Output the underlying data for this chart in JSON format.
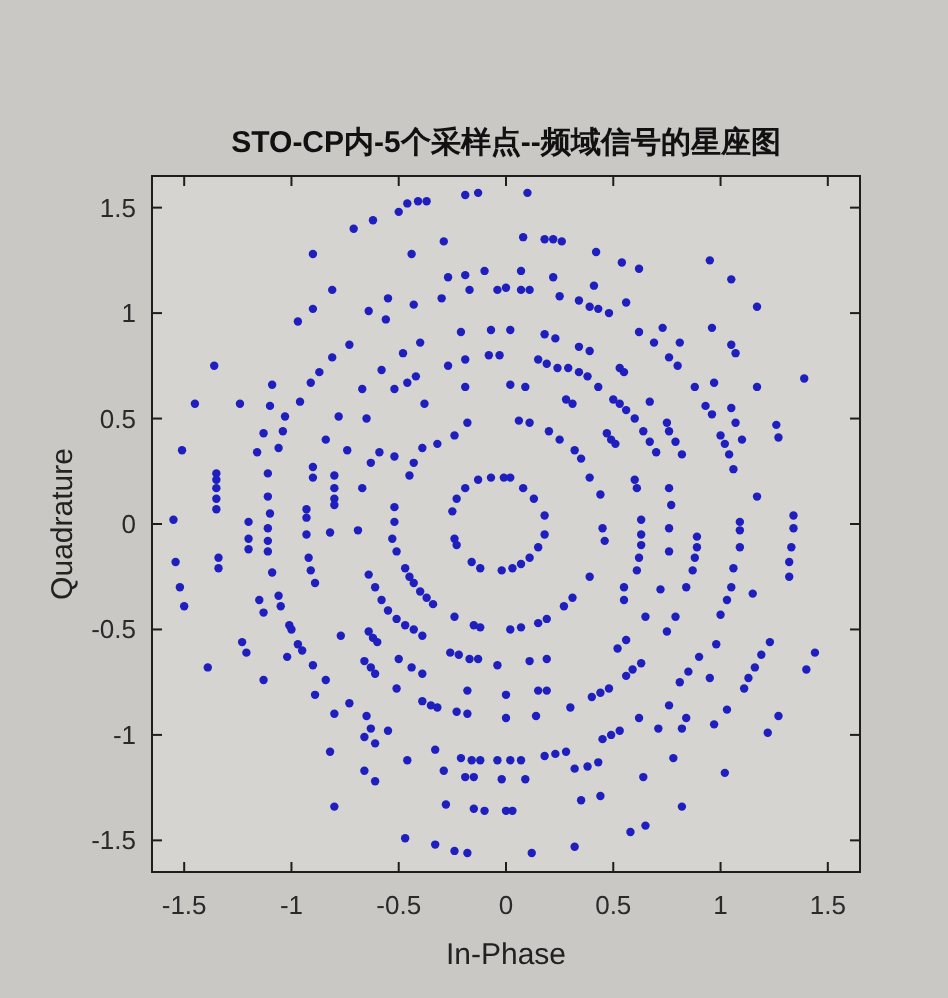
{
  "chart_data": {
    "type": "scatter",
    "title": "STO-CP内-5个采样点--频域信号的星座图",
    "xlabel": "In-Phase",
    "ylabel": "Quadrature",
    "xlim": [
      -1.65,
      1.65
    ],
    "ylim": [
      -1.65,
      1.65
    ],
    "xticks": [
      -1.5,
      -1,
      -0.5,
      0,
      0.5,
      1,
      1.5
    ],
    "yticks": [
      -1.5,
      -1,
      -0.5,
      0,
      0.5,
      1,
      1.5
    ],
    "marker": "circle",
    "grid": false,
    "series": [
      {
        "color": "#1f1fbf",
        "x": [
          -1.55,
          -1.51,
          -1.45,
          -1.36,
          -1.35,
          -1.35,
          -1.35,
          -1.35,
          -1.35,
          -1.24,
          -1.2,
          -1.16,
          -1.13,
          -1.1,
          -1.1,
          -1.11,
          -1.11,
          -1.09,
          -1.06,
          -1.04,
          -1.03,
          -0.96,
          -0.91,
          -0.97,
          -0.9,
          -0.9,
          -0.87,
          -0.81,
          -0.73,
          -0.84,
          -0.9,
          -0.9,
          -0.93,
          -0.93,
          -0.81,
          -0.78,
          -0.8,
          -0.8,
          -0.8,
          -0.8,
          -0.74,
          -0.71,
          -0.67,
          -0.67,
          -0.65,
          -0.62,
          -0.64,
          -0.55,
          -0.58,
          -0.63,
          -0.59,
          -0.56,
          -0.5,
          -0.46,
          -0.41,
          -0.37,
          -0.44,
          -0.48,
          -0.46,
          -0.42,
          -0.43,
          -0.52,
          -0.52,
          -0.52,
          -0.52,
          -0.45,
          -0.43,
          -0.38,
          -0.39,
          -0.4,
          -0.32,
          -0.29,
          -0.3,
          -0.27,
          -0.27,
          -0.24,
          -0.19,
          -0.13,
          -0.19,
          -0.1,
          -0.21,
          -0.19,
          -0.19,
          -0.18,
          -0.17,
          -0.04,
          -0.07,
          -0.08,
          -0.03,
          -0.25,
          -0.19,
          -0.13,
          -0.07,
          -0.01,
          -0.23,
          0.1,
          0.08,
          0.18,
          0.22,
          0.26,
          0.42,
          0.54,
          0.62,
          0.95,
          1.05,
          1.17,
          0.07,
          0.22,
          0.41,
          0.56,
          0.0,
          0.07,
          0.11,
          0.25,
          0.34,
          0.39,
          0.43,
          0.48,
          0.02,
          0.18,
          0.23,
          0.34,
          0.39,
          0.62,
          0.69,
          0.73,
          0.81,
          0.96,
          1.05,
          1.07,
          0.15,
          0.19,
          0.24,
          0.29,
          0.34,
          0.38,
          0.43,
          0.53,
          0.55,
          0.76,
          0.8,
          0.88,
          0.97,
          1.17,
          1.39,
          0.02,
          0.09,
          0.28,
          0.31,
          0.5,
          0.53,
          0.56,
          0.67,
          0.93,
          0.96,
          1.05,
          1.07,
          1.26,
          1.27,
          0.06,
          0.11,
          0.2,
          0.25,
          0.32,
          0.35,
          0.47,
          0.49,
          0.51,
          0.6,
          0.64,
          0.67,
          0.7,
          0.75,
          0.76,
          0.79,
          0.82,
          1.0,
          1.02,
          1.04,
          1.1,
          1.06,
          0.39,
          0.44,
          0.6,
          0.61,
          0.76,
          0.77,
          1.17,
          1.34,
          1.34,
          0.45,
          0.63,
          0.63,
          0.89,
          1.09,
          1.09,
          0.02,
          0.08,
          0.13,
          0.18,
          0.18,
          0.15,
          0.11,
          0.07,
          0.03,
          -0.02,
          0.46,
          0.39,
          0.31,
          0.27,
          0.19,
          0.15,
          0.07,
          0.02,
          0.63,
          0.62,
          0.61,
          0.55,
          0.55,
          0.65,
          0.79,
          0.72,
          0.76,
          0.76,
          0.89,
          0.88,
          0.87,
          0.84,
          0.75,
          0.56,
          0.52,
          0.63,
          0.59,
          0.56,
          1.09,
          1.06,
          1.05,
          1.03,
          1.15,
          1.0,
          1.33,
          1.32,
          1.32,
          1.23,
          1.19,
          1.16,
          1.13,
          1.11,
          1.44,
          1.4,
          0.9,
          0.85,
          0.81,
          0.95,
          0.98,
          0.76,
          1.03,
          1.27,
          1.22,
          0.97,
          0.84,
          0.82,
          0.71,
          0.62,
          0.53,
          0.49,
          0.45,
          0.48,
          0.44,
          0.4,
          0.3,
          0.19,
          0.15,
          0.14,
          0.0,
          0.0,
          0.19,
          0.11,
          -0.04,
          0.28,
          0.23,
          0.18,
          0.07,
          0.02,
          -0.04,
          0.43,
          0.38,
          0.32,
          0.64,
          0.78,
          1.02,
          -0.02,
          0.09,
          0.35,
          0.44,
          0.82,
          0.0,
          0.03,
          0.58,
          0.65,
          0.32,
          0.12,
          -1.54,
          -1.52,
          -1.5,
          -1.39,
          -1.34,
          -1.34,
          -1.2,
          -1.2,
          -1.11,
          -1.11,
          -1.11,
          -1.09,
          -1.15,
          -1.13,
          -1.06,
          -1.05,
          -1.23,
          -1.21,
          -1.13,
          -1.02,
          -1.01,
          -1.0,
          -0.97,
          -0.95,
          -0.93,
          -0.92,
          -0.91,
          -0.89,
          -0.9,
          -0.89,
          -0.84,
          -0.82,
          -0.8,
          -0.82,
          -0.8,
          -0.77,
          -0.73,
          -0.69,
          -0.64,
          -0.61,
          -0.58,
          -0.55,
          -0.64,
          -0.62,
          -0.6,
          -0.66,
          -0.63,
          -0.61,
          -0.65,
          -0.63,
          -0.66,
          -0.61,
          -0.66,
          -0.61,
          -0.55,
          -0.53,
          -0.51,
          -0.47,
          -0.45,
          -0.43,
          -0.4,
          -0.37,
          -0.34,
          -0.51,
          -0.47,
          -0.43,
          -0.39,
          -0.5,
          -0.44,
          -0.39,
          -0.51,
          -0.46,
          -0.47,
          -0.39,
          -0.35,
          -0.32,
          -0.33,
          -0.33,
          -0.29,
          -0.28,
          -0.24,
          -0.23,
          -0.24,
          -0.26,
          -0.22,
          -0.17,
          -0.13,
          -0.23,
          -0.18,
          -0.18,
          -0.24,
          -0.18,
          -0.21,
          -0.16,
          -0.12,
          -0.19,
          -0.15,
          -0.15,
          -0.1,
          -0.16,
          -0.12,
          -0.15,
          -0.12
        ],
        "values": [
          0.02,
          0.35,
          0.57,
          0.75,
          0.24,
          0.21,
          0.17,
          0.12,
          0.07,
          0.57,
          0.01,
          0.34,
          0.43,
          0.56,
          0.05,
          0.24,
          0.13,
          0.66,
          0.36,
          0.44,
          0.51,
          0.58,
          0.67,
          0.96,
          1.02,
          1.28,
          0.72,
          0.79,
          0.85,
          0.4,
          0.27,
          0.22,
          0.07,
          0.03,
          1.11,
          0.51,
          0.23,
          0.17,
          0.12,
          0.09,
          0.35,
          1.4,
          0.64,
          0.17,
          0.5,
          1.44,
          1.01,
          1.07,
          0.73,
          0.29,
          0.34,
          0.97,
          1.48,
          1.52,
          1.53,
          1.53,
          1.28,
          0.81,
          0.67,
          0.7,
          1.04,
          0.64,
          0.32,
          0.08,
          0.01,
          0.23,
          0.29,
          0.57,
          0.36,
          0.86,
          0.38,
          1.34,
          1.07,
          1.17,
          0.75,
          0.42,
          1.56,
          1.57,
          1.18,
          1.2,
          0.91,
          0.78,
          0.65,
          0.48,
          1.11,
          1.11,
          0.92,
          0.8,
          0.8,
          0.06,
          0.17,
          0.21,
          0.22,
          0.22,
          0.12,
          1.57,
          1.36,
          1.35,
          1.35,
          1.34,
          1.29,
          1.24,
          1.21,
          1.25,
          1.16,
          1.03,
          1.2,
          1.17,
          1.13,
          1.05,
          1.12,
          1.11,
          1.11,
          1.08,
          1.06,
          1.03,
          1.02,
          1.0,
          0.92,
          0.9,
          0.88,
          0.84,
          0.82,
          0.91,
          0.86,
          0.93,
          0.86,
          0.93,
          0.85,
          0.81,
          0.78,
          0.76,
          0.74,
          0.74,
          0.72,
          0.7,
          0.65,
          0.74,
          0.72,
          0.79,
          0.75,
          0.65,
          0.67,
          0.65,
          0.69,
          0.66,
          0.65,
          0.59,
          0.57,
          0.59,
          0.57,
          0.54,
          0.58,
          0.56,
          0.52,
          0.55,
          0.48,
          0.47,
          0.41,
          0.49,
          0.48,
          0.44,
          0.4,
          0.35,
          0.31,
          0.43,
          0.4,
          0.38,
          0.5,
          0.44,
          0.39,
          0.34,
          0.48,
          0.44,
          0.39,
          0.33,
          0.42,
          0.38,
          0.33,
          0.4,
          0.26,
          0.22,
          0.14,
          0.21,
          0.17,
          0.17,
          0.09,
          0.13,
          0.04,
          -0.02,
          -0.02,
          0.02,
          -0.05,
          -0.06,
          -0.03,
          0.01,
          0.22,
          0.17,
          0.12,
          0.04,
          -0.05,
          -0.11,
          -0.16,
          -0.19,
          -0.21,
          -0.22,
          -0.08,
          -0.25,
          -0.35,
          -0.39,
          -0.45,
          -0.47,
          -0.49,
          -0.5,
          -0.1,
          -0.16,
          -0.22,
          -0.3,
          -0.36,
          -0.44,
          -0.44,
          -0.31,
          -0.02,
          -0.13,
          -0.11,
          -0.16,
          -0.22,
          -0.3,
          -0.51,
          -0.55,
          -0.59,
          -0.66,
          -0.69,
          -0.72,
          -0.11,
          -0.21,
          -0.3,
          -0.36,
          -0.33,
          -0.43,
          -0.11,
          -0.18,
          -0.25,
          -0.56,
          -0.62,
          -0.68,
          -0.73,
          -0.78,
          -0.61,
          -0.69,
          -0.63,
          -0.7,
          -0.75,
          -0.73,
          -0.57,
          -0.86,
          -0.88,
          -0.91,
          -0.99,
          -0.95,
          -0.92,
          -0.97,
          -0.97,
          -0.92,
          -0.98,
          -1.0,
          -1.02,
          -0.78,
          -0.8,
          -0.82,
          -0.87,
          -0.79,
          -0.79,
          -0.91,
          -0.81,
          -0.92,
          -0.64,
          -0.65,
          -0.67,
          -1.08,
          -1.09,
          -1.1,
          -1.12,
          -1.12,
          -1.12,
          -1.13,
          -1.15,
          -1.16,
          -1.2,
          -1.11,
          -1.18,
          -1.21,
          -1.21,
          -1.31,
          -1.29,
          -1.34,
          -1.36,
          -1.36,
          -1.46,
          -1.43,
          -1.53,
          -1.56,
          -0.18,
          -0.3,
          -0.39,
          -0.68,
          -0.16,
          -0.21,
          -0.07,
          -0.12,
          -0.02,
          -0.08,
          -0.13,
          -0.23,
          -0.36,
          -0.42,
          -0.34,
          -0.39,
          -0.56,
          -0.61,
          -0.74,
          -0.63,
          -0.48,
          -0.5,
          -0.57,
          -0.6,
          -0.05,
          -0.16,
          -0.22,
          -0.28,
          -0.67,
          -0.81,
          -0.74,
          -0.04,
          -0.9,
          -1.08,
          -1.34,
          -0.53,
          -0.85,
          -0.03,
          -0.24,
          -0.3,
          -0.36,
          -0.41,
          -0.51,
          -0.54,
          -0.56,
          -0.65,
          -0.68,
          -0.71,
          -0.91,
          -0.97,
          -1.01,
          -1.04,
          -1.17,
          -1.22,
          -0.98,
          -0.07,
          -0.13,
          -0.21,
          -0.25,
          -0.28,
          -0.32,
          -0.35,
          -0.38,
          -0.45,
          -0.48,
          -0.5,
          -0.53,
          -0.64,
          -0.68,
          -0.71,
          -0.78,
          -1.12,
          -1.49,
          -0.84,
          -0.86,
          -0.87,
          -1.07,
          -1.52,
          -1.17,
          -1.33,
          -0.07,
          -0.1,
          -0.44,
          -0.61,
          -0.62,
          -0.64,
          -0.64,
          -0.89,
          -0.9,
          -0.79,
          -1.55,
          -1.56,
          -1.11,
          -1.12,
          -1.12,
          -1.2,
          -1.2,
          -1.35,
          -1.36,
          -0.18,
          -0.21,
          -0.48,
          -0.49
        ]
      }
    ]
  }
}
